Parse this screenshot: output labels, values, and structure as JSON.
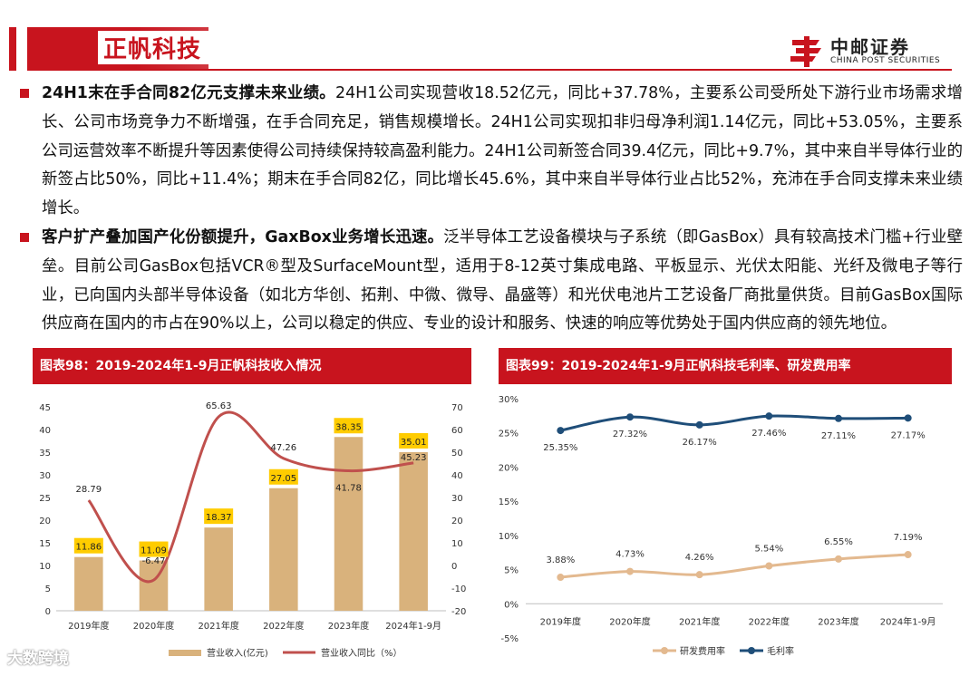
{
  "header": {
    "title": "正帆科技",
    "logo_cn": "中邮证券",
    "logo_en": "CHINA POST SECURITIES",
    "accent_color": "#c8141e"
  },
  "paragraphs": [
    {
      "lead": "24H1末在手合同82亿元支撑未来业绩。",
      "text": "24H1公司实现营收18.52亿元，同比+37.78%，主要系公司受所处下游行业市场需求增长、公司市场竞争力不断增强，在手合同充足，销售规模增长。24H1公司实现扣非归母净利润1.14亿元，同比+53.05%，主要系公司运营效率不断提升等因素使得公司持续保持较高盈利能力。24H1公司新签合同39.4亿元，同比+9.7%，其中来自半导体行业的新签占比50%，同比+11.4%；期末在手合同82亿，同比增长45.6%，其中来自半导体行业占比52%，充沛在手合同支撑未来业绩增长。"
    },
    {
      "lead": "客户扩产叠加国产化份额提升，GaxBox业务增长迅速。",
      "text": "泛半导体工艺设备模块与子系统（即GasBox）具有较高技术门槛+行业壁垒。目前公司GasBox包括VCR®型及SurfaceMount型，适用于8-12英寸集成电路、平板显示、光伏太阳能、光纤及微电子等行业，已向国内头部半导体设备（如北方华创、拓荆、中微、微导、晶盛等）和光伏电池片工艺设备厂商批量供货。目前GasBox国际供应商在国内的市占在90%以上，公司以稳定的供应、专业的设计和服务、快速的响应等优势处于国内供应商的领先地位。"
    }
  ],
  "chart_data": [
    {
      "type": "bar",
      "title": "图表98：2019-2024年1-9月正帆科技收入情况",
      "categories": [
        "2019年度",
        "2020年度",
        "2021年度",
        "2022年度",
        "2023年度",
        "2024年1-9月"
      ],
      "series": [
        {
          "name": "营业收入(亿元)",
          "type": "bar",
          "axis": "left",
          "color": "#d9b27c",
          "values": [
            11.86,
            11.09,
            18.37,
            27.05,
            38.35,
            35.01
          ]
        },
        {
          "name": "营业收入同比（%）",
          "type": "line",
          "axis": "right",
          "color": "#c0504d",
          "values": [
            28.79,
            -6.47,
            65.63,
            47.26,
            41.78,
            45.23
          ]
        }
      ],
      "left_axis": {
        "min": 0,
        "max": 45,
        "ticks": [
          0,
          5,
          10,
          15,
          20,
          25,
          30,
          35,
          40,
          45
        ]
      },
      "right_axis": {
        "min": -20,
        "max": 70,
        "ticks": [
          -20,
          -10,
          0,
          10,
          20,
          30,
          40,
          50,
          60,
          70
        ]
      },
      "bar_label_bg": "#ffcc00",
      "legend_position": "bottom"
    },
    {
      "type": "line",
      "title": "图表99：2019-2024年1-9月正帆科技毛利率、研发费用率",
      "categories": [
        "2019年度",
        "2020年度",
        "2021年度",
        "2022年度",
        "2023年度",
        "2024年1-9月"
      ],
      "series": [
        {
          "name": "研发费用率",
          "color": "#e3b98f",
          "values": [
            3.88,
            4.73,
            4.26,
            5.54,
            6.55,
            7.19
          ],
          "labels": [
            "3.88%",
            "4.73%",
            "4.26%",
            "5.54%",
            "6.55%",
            "7.19%"
          ]
        },
        {
          "name": "毛利率",
          "color": "#1f4e79",
          "values": [
            25.35,
            27.32,
            26.17,
            27.46,
            27.11,
            27.17
          ],
          "labels": [
            "25.35%",
            "27.32%",
            "26.17%",
            "27.46%",
            "27.11%",
            "27.17%"
          ]
        }
      ],
      "y_axis": {
        "min": -5,
        "max": 30,
        "ticks": [
          -5,
          0,
          5,
          10,
          15,
          20,
          25,
          30
        ],
        "tick_labels": [
          "-5%",
          "0%",
          "5%",
          "10%",
          "15%",
          "20%",
          "25%",
          "30%"
        ]
      },
      "legend_position": "bottom"
    }
  ],
  "watermark": "大数跨境"
}
